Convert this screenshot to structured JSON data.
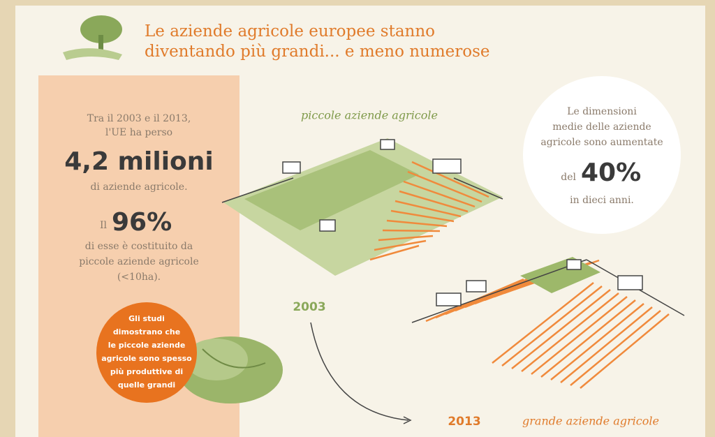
{
  "title": [
    "Le aziende agricole europee stanno",
    "diventando più grandi... e meno numerose"
  ],
  "left_panel": {
    "intro": [
      "Tra il 2003 e il 2013,",
      "l'UE ha perso"
    ],
    "big_number": "4,2 milioni",
    "after": "di aziende agricole.",
    "pct_prefix": "Il",
    "pct": "96%",
    "pct_text": [
      "di esse è costituito da",
      "piccole aziende agricole",
      "(<10ha)."
    ]
  },
  "badge": [
    "Gli studi",
    "dimostrano che",
    "le piccole aziende",
    "agricole sono spesso",
    "più produttive di",
    "quelle grandi"
  ],
  "circle": {
    "lines": [
      "Le dimensioni",
      "medie delle aziende",
      "agricole sono aumentate"
    ],
    "prefix": "del",
    "number": "40%",
    "suffix": "in dieci anni."
  },
  "labels": {
    "small_farms": "piccole aziende agricole",
    "year_2003": "2003",
    "year_2013": "2013",
    "large_farms": "grande aziende agricole"
  }
}
